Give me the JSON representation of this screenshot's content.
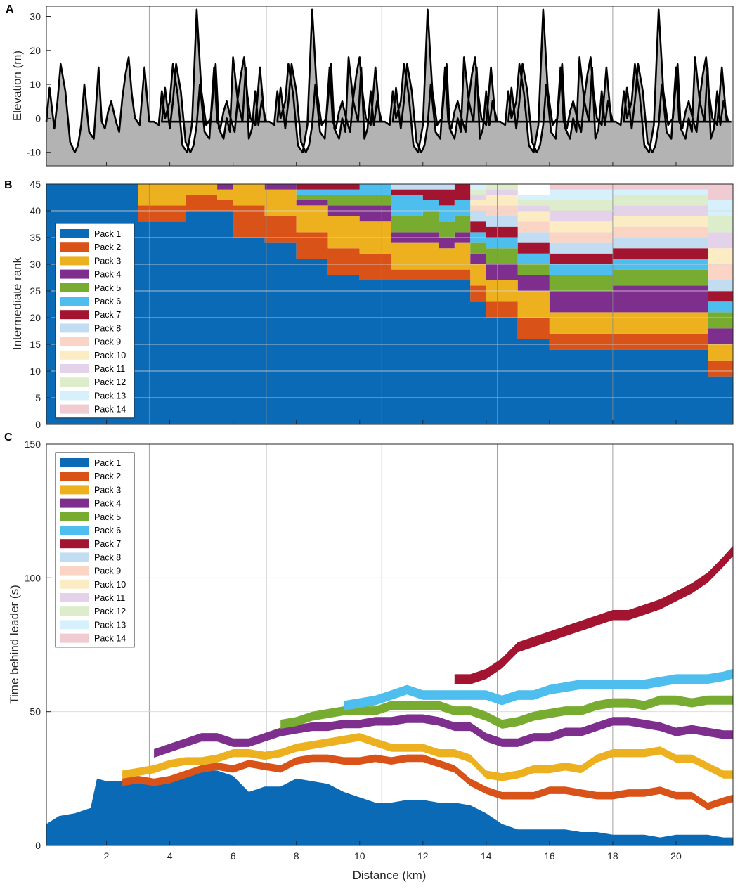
{
  "figure": {
    "xlabel": "Distance (km)",
    "x_ticks": [
      "2",
      "4",
      "6",
      "8",
      "10",
      "12",
      "14",
      "16",
      "18",
      "20"
    ],
    "x_tick_values": [
      2,
      4,
      6,
      8,
      10,
      12,
      14,
      16,
      18,
      20
    ],
    "xlim": [
      0.1,
      21.8
    ],
    "lap_markers_km": [
      3.35,
      7.05,
      10.7,
      14.35,
      18.0
    ]
  },
  "legend_entries": [
    "Pack 1",
    "Pack 2",
    "Pack 3",
    "Pack 4",
    "Pack 5",
    "Pack 6",
    "Pack 7",
    "Pack 8",
    "Pack 9",
    "Pack 10",
    "Pack 11",
    "Pack 12",
    "Pack 13",
    "Pack 14"
  ],
  "pack_colors": [
    "#0a6ab6",
    "#d95319",
    "#edb120",
    "#7e2f8e",
    "#77ac30",
    "#4dbeee",
    "#a2142f",
    "#c2dcf2",
    "#fad4c4",
    "#fbecc4",
    "#e4d1ea",
    "#ddecca",
    "#d6f1fb",
    "#f0cbd2"
  ],
  "chart_data": [
    {
      "panel": "A",
      "type": "area",
      "ylabel": "Elevation (m)",
      "ylim": [
        -14,
        33
      ],
      "y_ticks": [
        "-10",
        "0",
        "10",
        "20",
        "30"
      ],
      "y_tick_values": [
        -10,
        0,
        10,
        20,
        30
      ],
      "x": [
        0.1,
        0.2,
        0.35,
        0.45,
        0.55,
        0.7,
        0.85,
        1.0,
        1.1,
        1.2,
        1.3,
        1.45,
        1.6,
        1.75,
        1.85,
        1.95,
        2.05,
        2.15,
        2.3,
        2.4,
        2.5,
        2.6,
        2.7,
        2.8,
        2.9,
        3.05,
        3.2,
        3.35,
        3.5,
        3.65,
        3.75,
        3.85,
        4.0,
        4.1,
        4.25,
        4.4,
        4.55,
        4.7,
        4.85,
        5.0,
        5.15,
        5.3,
        5.45,
        5.55,
        5.7,
        5.8,
        5.9,
        6.0,
        6.15,
        6.3,
        6.4,
        6.5,
        6.6,
        6.7,
        6.8,
        6.9,
        7.05
      ],
      "y": [
        -1,
        9,
        -3,
        5,
        16,
        8,
        -7,
        -10,
        -8,
        -2,
        10,
        -4,
        -6,
        15,
        -1,
        -3,
        2,
        5,
        -1,
        -4,
        6,
        13,
        18,
        7,
        0,
        -2,
        15,
        -1,
        -1,
        -2,
        8,
        0,
        5,
        16,
        7,
        -8,
        -10,
        -2,
        32,
        8,
        -2,
        0,
        16,
        -3,
        -6,
        0,
        -4,
        18,
        5,
        -1,
        15,
        -6,
        -3,
        8,
        -2,
        5,
        -1
      ],
      "laps": 6,
      "lap_length_km": 3.65
    },
    {
      "panel": "B",
      "type": "stacked-area",
      "ylabel": "Intermediate rank",
      "ylim": [
        0,
        45
      ],
      "y_ticks": [
        "0",
        "5",
        "10",
        "15",
        "20",
        "25",
        "30",
        "35",
        "40",
        "45"
      ],
      "y_tick_values": [
        0,
        5,
        10,
        15,
        20,
        25,
        30,
        35,
        40,
        45
      ],
      "x": [
        0.1,
        1.5,
        2.6,
        3.0,
        3.5,
        4.5,
        5.5,
        6.0,
        7.0,
        8.0,
        9.0,
        10.0,
        11.0,
        12.0,
        12.5,
        13.0,
        13.5,
        14.0,
        15.0,
        16.0,
        17.0,
        18.0,
        19.0,
        20.0,
        21.0,
        21.8
      ],
      "series": [
        {
          "name": "Pack 1",
          "values": [
            45,
            45,
            45,
            38,
            38,
            40,
            40,
            35,
            34,
            31,
            28,
            27,
            27,
            27,
            27,
            27,
            23,
            20,
            16,
            14,
            14,
            14,
            14,
            14,
            9,
            7
          ]
        },
        {
          "name": "Pack 2",
          "values": [
            0,
            0,
            0,
            3,
            3,
            3,
            2,
            6,
            5,
            5,
            5,
            5,
            2,
            2,
            2,
            2,
            3,
            3,
            4,
            3,
            3,
            3,
            3,
            3,
            3,
            3
          ]
        },
        {
          "name": "Pack 3",
          "values": [
            0,
            0,
            0,
            4,
            4,
            2,
            2,
            4,
            5,
            5,
            6,
            6,
            5,
            5,
            4,
            5,
            4,
            4,
            5,
            4,
            4,
            4,
            4,
            4,
            3,
            3
          ]
        },
        {
          "name": "Pack 4",
          "values": [
            0,
            0,
            0,
            0,
            0,
            0,
            1,
            0,
            1,
            1,
            2,
            3,
            2,
            2,
            2,
            2,
            2,
            3,
            3,
            4,
            4,
            5,
            5,
            5,
            3,
            4
          ]
        },
        {
          "name": "Pack 5",
          "values": [
            0,
            0,
            0,
            0,
            0,
            0,
            0,
            0,
            0,
            1,
            2,
            2,
            3,
            4,
            3,
            3,
            2,
            3,
            2,
            3,
            3,
            3,
            3,
            3,
            3,
            3
          ]
        },
        {
          "name": "Pack 6",
          "values": [
            0,
            0,
            0,
            0,
            0,
            0,
            0,
            0,
            0,
            1,
            1,
            2,
            4,
            2,
            3,
            3,
            2,
            2,
            2,
            2,
            2,
            2,
            2,
            2,
            2,
            2
          ]
        },
        {
          "name": "Pack 7",
          "values": [
            0,
            0,
            0,
            0,
            0,
            0,
            0,
            0,
            0,
            1,
            1,
            0,
            1,
            2,
            3,
            3,
            2,
            2,
            2,
            2,
            2,
            2,
            2,
            2,
            2,
            2
          ]
        },
        {
          "name": "Pack 8",
          "values": [
            0,
            0,
            0,
            0,
            0,
            0,
            0,
            0,
            0,
            0,
            0,
            0,
            1,
            1,
            1,
            1,
            2,
            2,
            2,
            2,
            2,
            2,
            2,
            2,
            2,
            2
          ]
        },
        {
          "name": "Pack 9",
          "values": [
            0,
            0,
            0,
            0,
            0,
            0,
            0,
            0,
            0,
            0,
            0,
            0,
            0,
            0,
            0,
            1,
            1,
            2,
            2,
            2,
            2,
            2,
            2,
            2,
            3,
            3
          ]
        },
        {
          "name": "Pack 10",
          "values": [
            0,
            0,
            0,
            0,
            0,
            0,
            0,
            0,
            0,
            0,
            0,
            0,
            0,
            0,
            0,
            0,
            1,
            2,
            2,
            2,
            2,
            2,
            2,
            2,
            3,
            3
          ]
        },
        {
          "name": "Pack 11",
          "values": [
            0,
            0,
            0,
            0,
            0,
            0,
            0,
            0,
            0,
            0,
            0,
            0,
            0,
            0,
            0,
            0,
            1,
            1,
            1,
            2,
            2,
            2,
            2,
            2,
            3,
            3
          ]
        },
        {
          "name": "Pack 12",
          "values": [
            0,
            0,
            0,
            0,
            0,
            0,
            0,
            0,
            0,
            0,
            0,
            0,
            0,
            0,
            0,
            0,
            1,
            1,
            1,
            2,
            2,
            2,
            2,
            2,
            3,
            3
          ]
        },
        {
          "name": "Pack 13",
          "values": [
            0,
            0,
            0,
            0,
            0,
            0,
            0,
            0,
            0,
            0,
            0,
            0,
            0,
            0,
            0,
            0,
            1,
            1,
            1,
            2,
            2,
            1,
            1,
            1,
            3,
            3
          ]
        },
        {
          "name": "Pack 14",
          "values": [
            0,
            0,
            0,
            0,
            0,
            0,
            0,
            0,
            0,
            0,
            0,
            0,
            0,
            0,
            0,
            0,
            0,
            0,
            0,
            1,
            1,
            1,
            1,
            1,
            3,
            3
          ]
        }
      ]
    },
    {
      "panel": "C",
      "type": "area",
      "ylabel": "Time behind leader (s)",
      "ylim": [
        0,
        150
      ],
      "y_ticks": [
        "0",
        "50",
        "100",
        "150"
      ],
      "y_tick_values": [
        0,
        50,
        100,
        150
      ],
      "x": [
        0.1,
        0.5,
        1.0,
        1.5,
        1.7,
        2.0,
        2.5,
        3.0,
        3.5,
        4.0,
        4.5,
        5.0,
        5.5,
        6.0,
        6.5,
        7.0,
        7.5,
        8.0,
        8.5,
        9.0,
        9.5,
        10.0,
        10.5,
        11.0,
        11.5,
        12.0,
        12.5,
        13.0,
        13.5,
        14.0,
        14.5,
        15.0,
        15.5,
        16.0,
        16.5,
        17.0,
        17.5,
        18.0,
        18.5,
        19.0,
        19.5,
        20.0,
        20.5,
        21.0,
        21.5,
        21.8
      ],
      "series": [
        {
          "name": "Pack 1",
          "values": [
            8,
            11,
            12,
            14,
            25,
            24,
            24,
            24,
            24,
            25,
            27,
            28,
            28,
            26,
            20,
            22,
            22,
            25,
            24,
            23,
            20,
            18,
            16,
            16,
            17,
            17,
            16,
            16,
            15,
            12,
            8,
            6,
            6,
            6,
            6,
            5,
            5,
            4,
            4,
            4,
            3,
            4,
            4,
            4,
            3,
            3
          ]
        },
        {
          "name": "Pack 2",
          "values": [
            null,
            null,
            null,
            null,
            null,
            null,
            25,
            26,
            25,
            26,
            28,
            30,
            31,
            30,
            32,
            31,
            30,
            33,
            34,
            34,
            33,
            33,
            34,
            33,
            34,
            34,
            32,
            30,
            25,
            22,
            20,
            20,
            20,
            22,
            22,
            21,
            20,
            20,
            21,
            21,
            22,
            20,
            20,
            16,
            18,
            19
          ]
        },
        {
          "name": "Pack 3",
          "values": [
            null,
            null,
            null,
            null,
            null,
            null,
            28,
            29,
            30,
            32,
            33,
            33,
            34,
            36,
            36,
            35,
            36,
            38,
            39,
            40,
            41,
            42,
            40,
            38,
            38,
            38,
            36,
            36,
            34,
            28,
            27,
            28,
            30,
            30,
            31,
            30,
            34,
            36,
            36,
            36,
            37,
            34,
            34,
            31,
            28,
            28
          ]
        },
        {
          "name": "Pack 4",
          "values": [
            null,
            null,
            null,
            null,
            null,
            null,
            null,
            null,
            36,
            38,
            40,
            42,
            42,
            40,
            40,
            42,
            44,
            45,
            46,
            46,
            47,
            47,
            48,
            48,
            49,
            49,
            48,
            46,
            46,
            42,
            40,
            40,
            42,
            42,
            44,
            44,
            46,
            48,
            48,
            47,
            46,
            44,
            45,
            44,
            43,
            43
          ]
        },
        {
          "name": "Pack 5",
          "values": [
            null,
            null,
            null,
            null,
            null,
            null,
            null,
            null,
            null,
            null,
            null,
            null,
            null,
            null,
            null,
            null,
            47,
            48,
            50,
            51,
            52,
            52,
            52,
            54,
            54,
            54,
            54,
            52,
            52,
            50,
            47,
            48,
            50,
            51,
            52,
            52,
            54,
            55,
            55,
            54,
            56,
            56,
            55,
            56,
            56,
            56
          ]
        },
        {
          "name": "Pack 6",
          "values": [
            null,
            null,
            null,
            null,
            null,
            null,
            null,
            null,
            null,
            null,
            null,
            null,
            null,
            null,
            null,
            null,
            null,
            null,
            null,
            null,
            54,
            55,
            56,
            58,
            60,
            58,
            58,
            58,
            58,
            58,
            56,
            58,
            58,
            60,
            61,
            62,
            62,
            62,
            62,
            62,
            63,
            64,
            64,
            64,
            65,
            66
          ]
        },
        {
          "name": "Pack 7",
          "values": [
            null,
            null,
            null,
            null,
            null,
            null,
            null,
            null,
            null,
            null,
            null,
            null,
            null,
            null,
            null,
            null,
            null,
            null,
            null,
            null,
            null,
            null,
            null,
            null,
            null,
            null,
            null,
            64,
            64,
            66,
            70,
            76,
            78,
            80,
            82,
            84,
            86,
            88,
            88,
            90,
            92,
            95,
            98,
            102,
            108,
            112
          ]
        }
      ]
    }
  ]
}
